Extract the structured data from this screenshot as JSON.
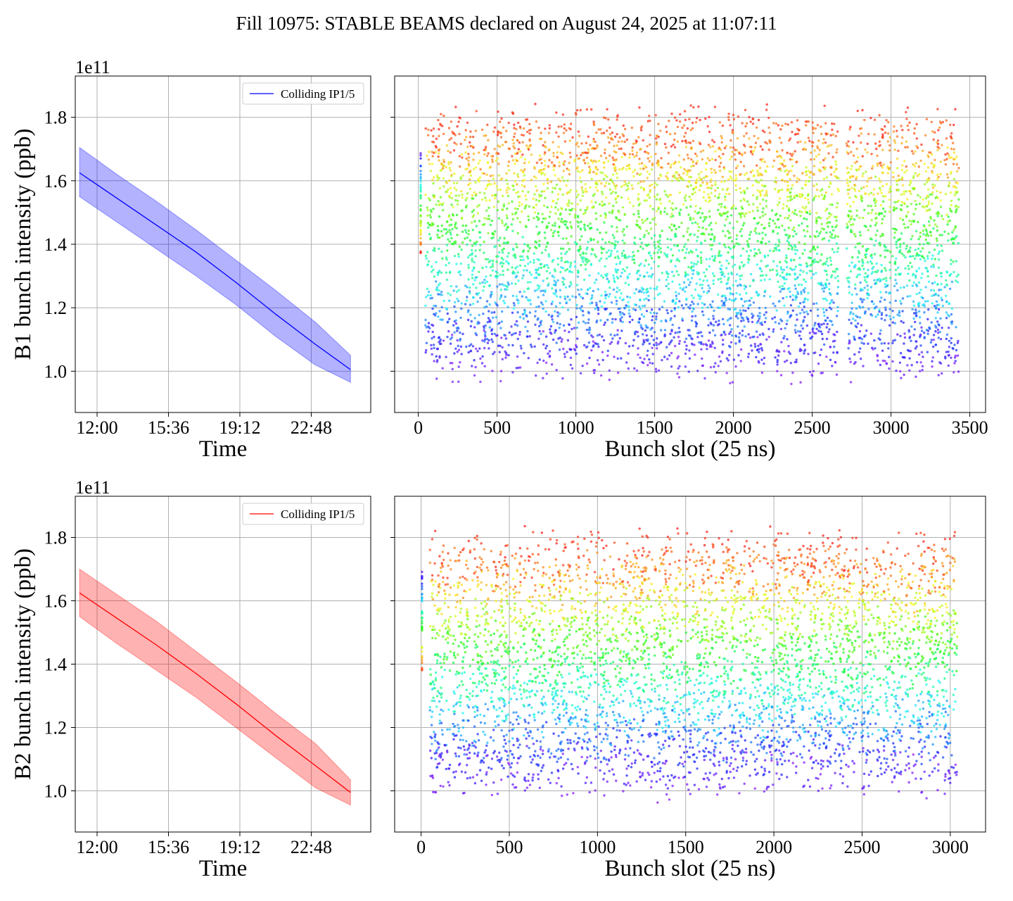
{
  "title": "Fill 10975: STABLE BEAMS declared on August 24, 2025 at 11:07:11",
  "colors": {
    "b1": "#0000ff",
    "b2": "#ff0000",
    "grid": "#b0b0b0"
  },
  "chart_data": [
    {
      "type": "line",
      "name": "b1-time",
      "ylabel": "B1 bunch intensity (ppb)",
      "xlabel": "Time",
      "yoffset": "1e11",
      "legend": "Colliding IP1/5",
      "legend_position": "upper-right",
      "grid": true,
      "ylim": [
        0.87,
        1.93
      ],
      "yticks": [
        "1.0",
        "1.2",
        "1.4",
        "1.6",
        "1.8"
      ],
      "xlim": [
        "10:54",
        "01:48"
      ],
      "xticks": [
        "12:00",
        "15:36",
        "19:12",
        "22:48"
      ],
      "x": [
        "11:07",
        "13:00",
        "15:00",
        "17:00",
        "19:00",
        "21:00",
        "23:00",
        "00:47"
      ],
      "mean": [
        1.625,
        1.545,
        1.46,
        1.375,
        1.28,
        1.18,
        1.085,
        1.005
      ],
      "band_upper": [
        1.705,
        1.62,
        1.535,
        1.445,
        1.35,
        1.255,
        1.155,
        1.05
      ],
      "band_lower": [
        1.55,
        1.47,
        1.385,
        1.3,
        1.21,
        1.11,
        1.02,
        0.965
      ]
    },
    {
      "type": "scatter",
      "name": "b1-bunch",
      "xlabel": "Bunch slot (25 ns)",
      "grid": true,
      "ylim": [
        0.87,
        1.93
      ],
      "xlim": [
        -150,
        3600
      ],
      "xticks": [
        "0",
        "500",
        "1000",
        "1500",
        "2000",
        "2500",
        "3000",
        "3500"
      ],
      "trains_start": [
        45,
        175,
        295,
        405,
        590,
        730,
        990,
        1355,
        1560,
        1900,
        2245,
        2715,
        2870,
        3010,
        3340
      ],
      "trains_end": [
        165,
        285,
        395,
        580,
        720,
        980,
        1345,
        1550,
        1890,
        2235,
        2670,
        2860,
        3000,
        3330,
        3430
      ],
      "colour_map": "rainbow (early = red/high intensity ... late = purple)",
      "y_range": [
        0.93,
        1.87
      ]
    },
    {
      "type": "line",
      "name": "b2-time",
      "ylabel": "B2 bunch intensity (ppb)",
      "xlabel": "Time",
      "yoffset": "1e11",
      "legend": "Colliding IP1/5",
      "legend_position": "upper-right",
      "grid": true,
      "ylim": [
        0.87,
        1.93
      ],
      "yticks": [
        "1.0",
        "1.2",
        "1.4",
        "1.6",
        "1.8"
      ],
      "xlim": [
        "10:54",
        "01:48"
      ],
      "xticks": [
        "12:00",
        "15:36",
        "19:12",
        "22:48"
      ],
      "x": [
        "11:07",
        "13:00",
        "15:00",
        "17:00",
        "19:00",
        "21:00",
        "23:00",
        "00:47"
      ],
      "mean": [
        1.625,
        1.545,
        1.46,
        1.37,
        1.275,
        1.175,
        1.08,
        0.995
      ],
      "band_upper": [
        1.7,
        1.62,
        1.535,
        1.44,
        1.345,
        1.245,
        1.15,
        1.035
      ],
      "band_lower": [
        1.55,
        1.465,
        1.38,
        1.295,
        1.2,
        1.105,
        1.01,
        0.955
      ]
    },
    {
      "type": "scatter",
      "name": "b2-bunch",
      "xlabel": "Bunch slot (25 ns)",
      "grid": true,
      "ylim": [
        0.87,
        1.93
      ],
      "xlim": [
        -150,
        3200
      ],
      "xticks": [
        "0",
        "500",
        "1000",
        "1500",
        "2000",
        "2500",
        "3000"
      ],
      "trains_start": [
        50,
        180,
        290,
        395,
        580,
        720,
        980,
        1320,
        1540,
        1860,
        2190,
        2620,
        2740,
        3035
      ],
      "trains_end": [
        170,
        280,
        385,
        570,
        710,
        970,
        1310,
        1530,
        1850,
        2180,
        2610,
        2730,
        3030,
        3040
      ],
      "colour_map": "rainbow (early = red/high intensity ... late = purple)",
      "y_range": [
        0.94,
        1.86
      ]
    }
  ]
}
